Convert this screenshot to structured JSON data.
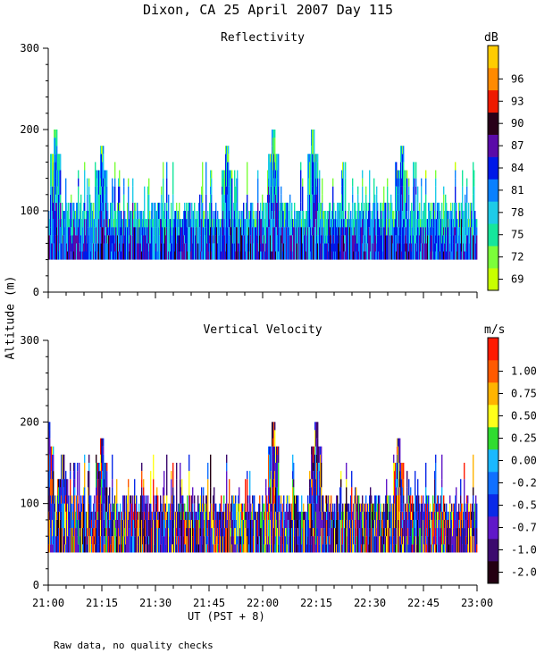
{
  "title": "Dixon, CA 25 April 2007  Day 115",
  "ylabel": "Altitude (m)",
  "xlabel": "UT  (PST + 8)",
  "footnote": "Raw data, no quality checks",
  "x_ticks": [
    "21:00",
    "21:15",
    "21:30",
    "21:45",
    "22:00",
    "22:15",
    "22:30",
    "22:45",
    "23:00"
  ],
  "chart_data": [
    {
      "type": "heatmap",
      "title": "Reflectivity",
      "ylim": [
        0,
        300
      ],
      "y_ticks": [
        0,
        100,
        200,
        300
      ],
      "xlim": [
        "21:00",
        "23:00"
      ],
      "colorbar": {
        "unit": "dB",
        "ticks": [
          "69",
          "72",
          "75",
          "78",
          "81",
          "84",
          "87",
          "90",
          "93",
          "96"
        ],
        "colors": [
          "#c8ff00",
          "#7cff3a",
          "#16e69c",
          "#1ecbe8",
          "#0a80ff",
          "#0018e8",
          "#5a0aa8",
          "#280018",
          "#ee1a00",
          "#ff8a00",
          "#ffcc00"
        ]
      },
      "echo_base_m": 40,
      "echo_top_typical_m": 100,
      "echo_top_peaks_m": [
        {
          "time": "21:02",
          "alt": 200
        },
        {
          "time": "21:15",
          "alt": 180
        },
        {
          "time": "21:50",
          "alt": 180
        },
        {
          "time": "22:03",
          "alt": 200
        },
        {
          "time": "22:14",
          "alt": 200
        },
        {
          "time": "22:39",
          "alt": 180
        }
      ]
    },
    {
      "type": "heatmap",
      "title": "Vertical Velocity",
      "ylim": [
        0,
        300
      ],
      "y_ticks": [
        0,
        100,
        200,
        300
      ],
      "xlim": [
        "21:00",
        "23:00"
      ],
      "colorbar": {
        "unit": "m/s",
        "ticks": [
          "-2.00",
          "-1.00",
          "-0.75",
          "-0.50",
          "-0.25",
          "0.00",
          "0.25",
          "0.50",
          "0.75",
          "1.00"
        ],
        "colors": [
          "#240012",
          "#3c0a6e",
          "#6018c8",
          "#0a2ae8",
          "#1070ff",
          "#1ab8ff",
          "#30dc30",
          "#ffff1a",
          "#ffb400",
          "#ff5a00",
          "#ff1a00"
        ]
      },
      "echo_base_m": 40,
      "echo_top_typical_m": 100,
      "echo_top_peaks_m": [
        {
          "time": "21:00",
          "alt": 200
        },
        {
          "time": "21:04",
          "alt": 160
        },
        {
          "time": "21:15",
          "alt": 180
        },
        {
          "time": "22:03",
          "alt": 200
        },
        {
          "time": "22:15",
          "alt": 200
        },
        {
          "time": "22:38",
          "alt": 180
        }
      ]
    }
  ]
}
